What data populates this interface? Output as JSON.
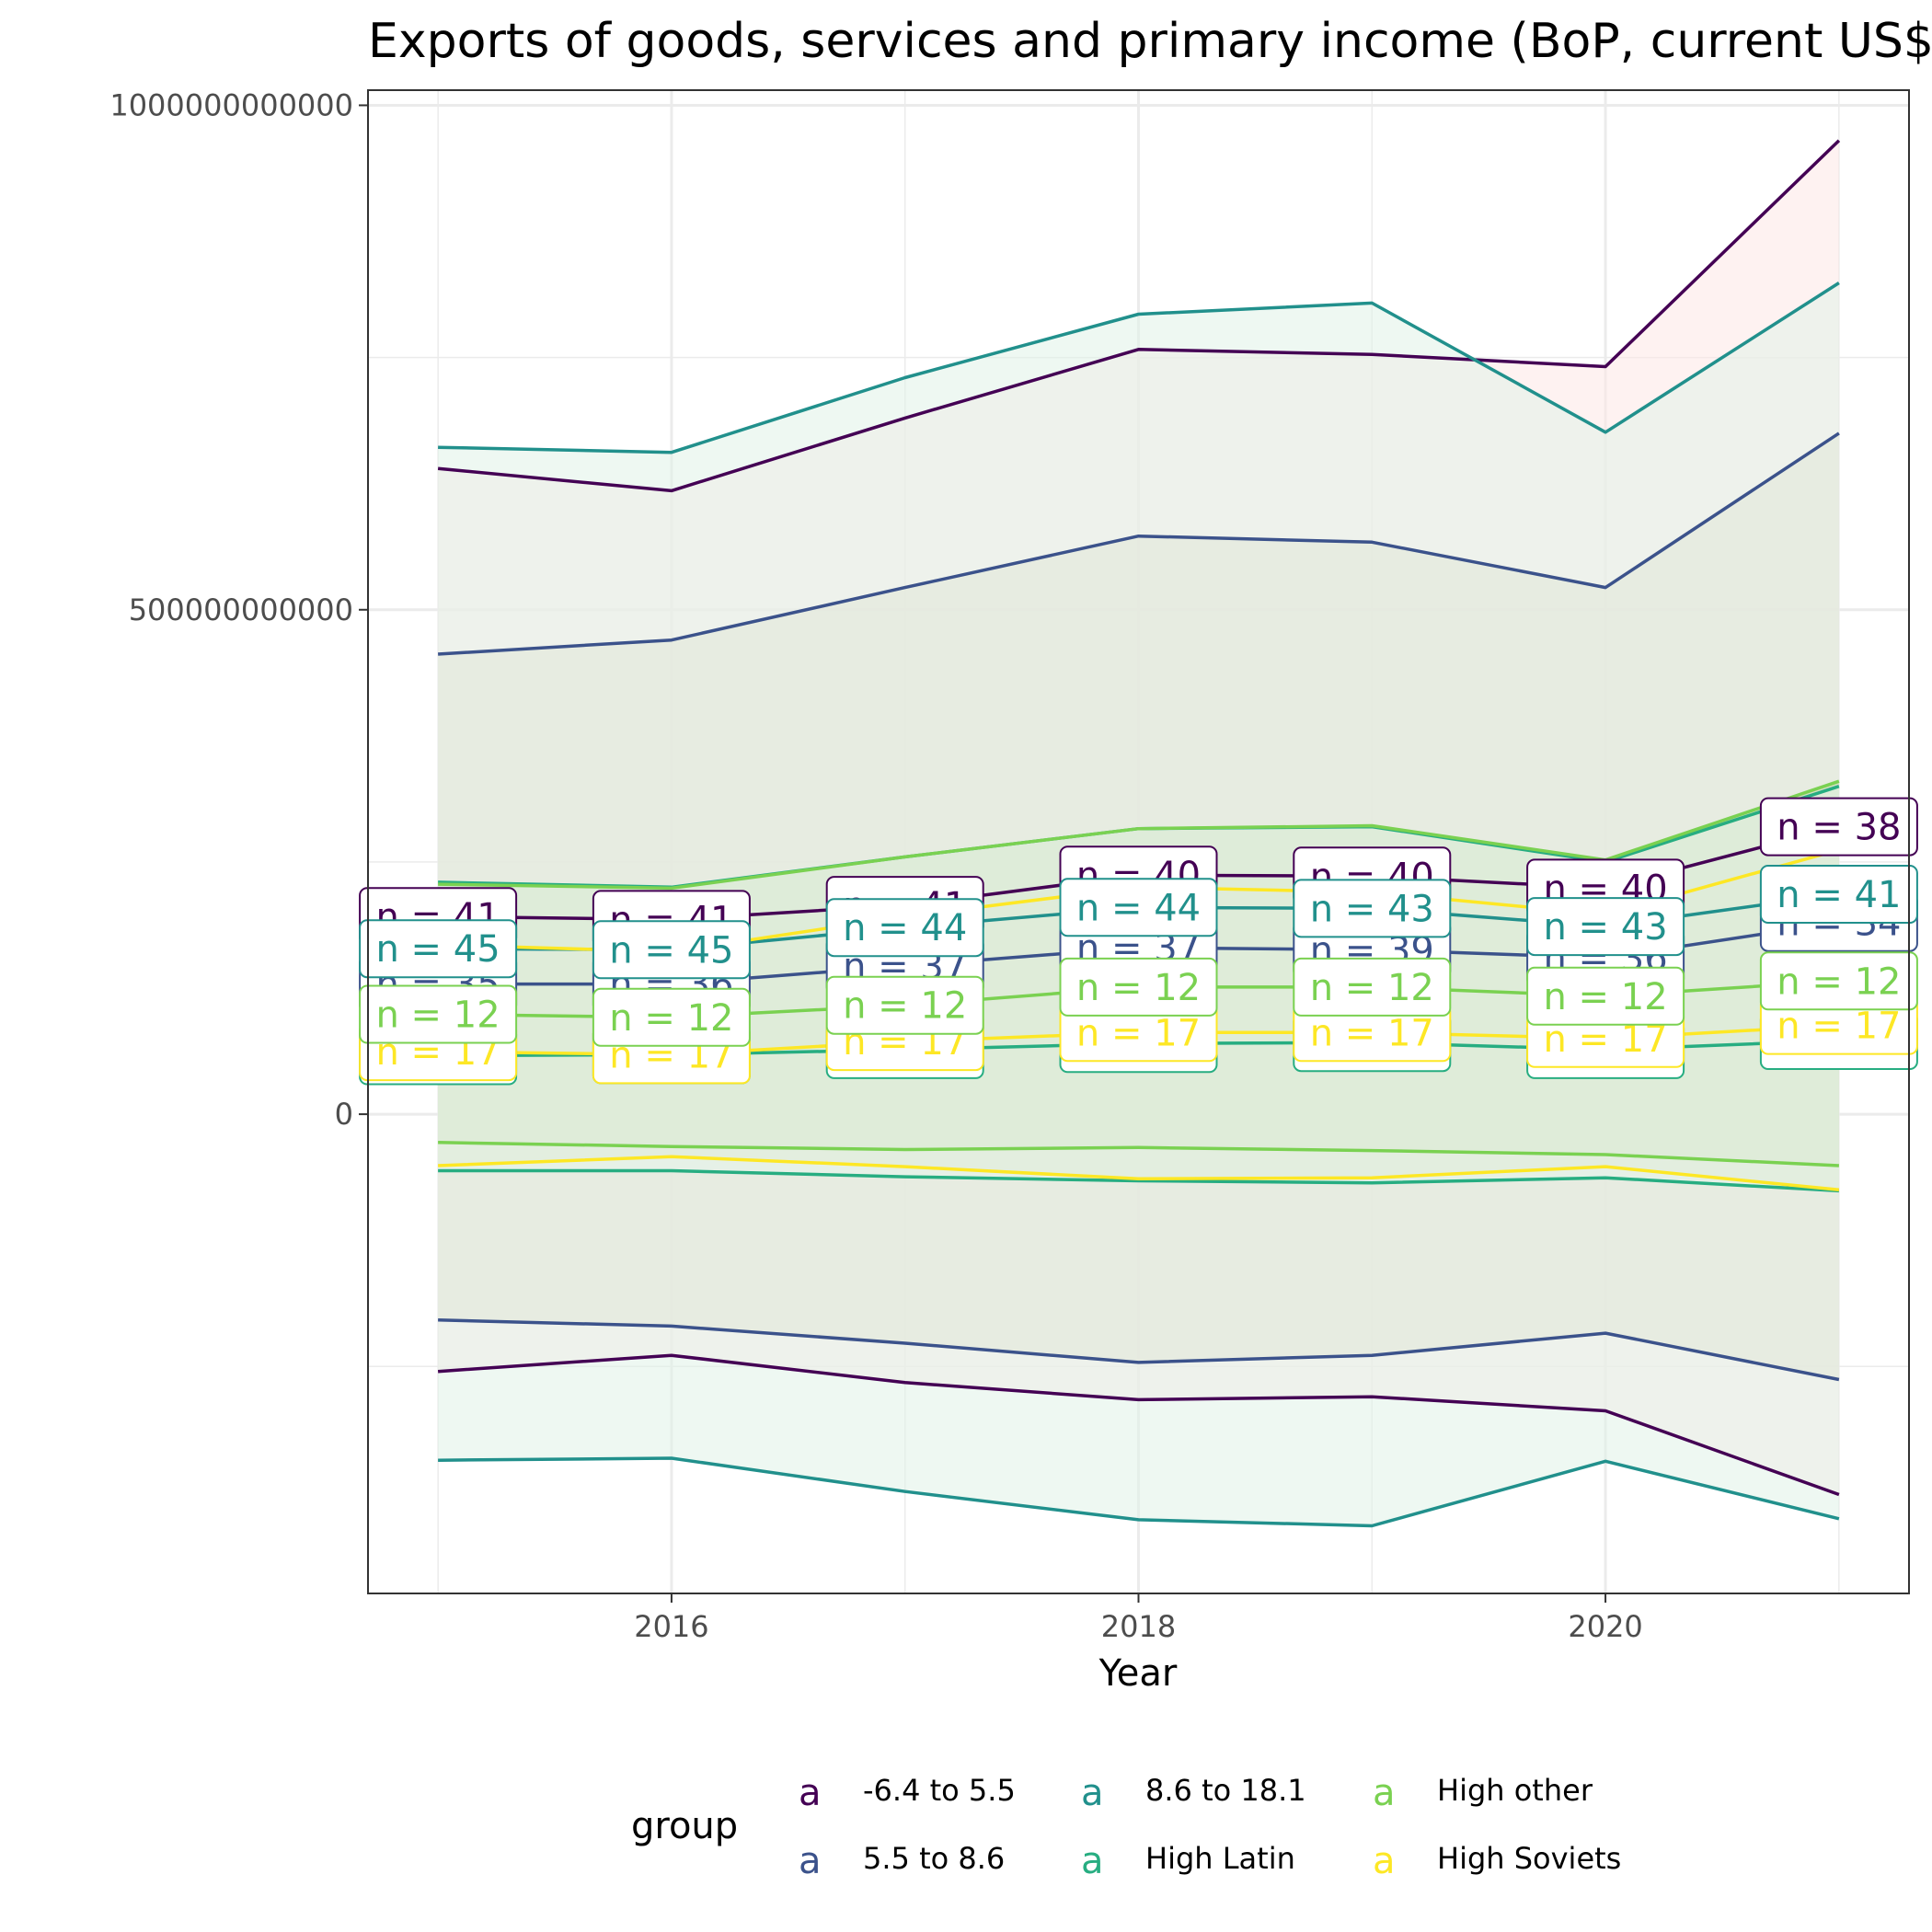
{
  "chart_data": {
    "type": "line",
    "title": "Exports of goods, services and primary income (BoP, current US$)",
    "xlabel": "Year",
    "ylabel": "",
    "xlim": [
      2014.7,
      2021.3
    ],
    "ylim": [
      -475000000000,
      1015000000000
    ],
    "x": [
      2015,
      2016,
      2017,
      2018,
      2019,
      2020,
      2021
    ],
    "x_ticks": [
      2016,
      2018,
      2020
    ],
    "x_tick_labels": [
      "2016",
      "2018",
      "2020"
    ],
    "y_ticks": [
      0,
      500000000000,
      1000000000000
    ],
    "y_tick_labels": [
      "0",
      "500000000000",
      "1000000000000"
    ],
    "grid": true,
    "legend": {
      "title": "group",
      "position": "bottom",
      "key_glyph": "a"
    },
    "series": [
      {
        "name": "-6.4 to 5.5",
        "color": "#440154",
        "fill": "#fde7e6",
        "mean": [
          196000000000,
          193000000000,
          207000000000,
          237000000000,
          236000000000,
          224000000000,
          285000000000
        ],
        "upper": [
          640000000000,
          618000000000,
          690000000000,
          758000000000,
          753000000000,
          741000000000,
          965000000000
        ],
        "lower": [
          -255000000000,
          -239000000000,
          -266000000000,
          -283000000000,
          -280000000000,
          -294000000000,
          -377000000000
        ],
        "n": [
          41,
          41,
          41,
          40,
          40,
          40,
          38
        ]
      },
      {
        "name": "5.5 to 8.6",
        "color": "#3b528b",
        "fill": "#e2e8d8",
        "mean": [
          129000000000,
          129000000000,
          147000000000,
          165000000000,
          163000000000,
          155000000000,
          190000000000
        ],
        "upper": [
          456000000000,
          470000000000,
          522000000000,
          573000000000,
          567000000000,
          522000000000,
          675000000000
        ],
        "lower": [
          -204000000000,
          -210000000000,
          -227000000000,
          -246000000000,
          -239000000000,
          -217000000000,
          -263000000000
        ],
        "n": [
          35,
          36,
          37,
          37,
          39,
          36,
          34
        ]
      },
      {
        "name": "8.6 to 18.1",
        "color": "#21908c",
        "fill": "#e0f3e8",
        "mean": [
          164000000000,
          163000000000,
          185000000000,
          205000000000,
          204000000000,
          186000000000,
          218000000000
        ],
        "upper": [
          661000000000,
          656000000000,
          730000000000,
          793000000000,
          804000000000,
          676000000000,
          824000000000
        ],
        "lower": [
          -343000000000,
          -341000000000,
          -374000000000,
          -402000000000,
          -408000000000,
          -344000000000,
          -401000000000
        ],
        "n": [
          45,
          45,
          44,
          44,
          43,
          43,
          41
        ]
      },
      {
        "name": "High Latin",
        "color": "#27ad81",
        "fill": "#e6f6ec",
        "mean": [
          58000000000,
          59000000000,
          64000000000,
          70000000000,
          71000000000,
          64000000000,
          73000000000
        ],
        "upper": [
          230000000000,
          225000000000,
          255000000000,
          283000000000,
          285000000000,
          250000000000,
          325000000000
        ],
        "lower": [
          -56000000000,
          -56000000000,
          -62000000000,
          -66000000000,
          -68000000000,
          -63000000000,
          -76000000000
        ],
        "n": [
          15,
          15,
          15,
          15,
          15,
          15,
          15
        ]
      },
      {
        "name": "High other",
        "color": "#7ad151",
        "fill": "#c6d6a8",
        "mean": [
          99000000000,
          96000000000,
          108000000000,
          126000000000,
          126000000000,
          117000000000,
          132000000000
        ],
        "upper": [
          228000000000,
          224000000000,
          255000000000,
          283000000000,
          286000000000,
          252000000000,
          330000000000
        ],
        "lower": [
          -28000000000,
          -32000000000,
          -35000000000,
          -33000000000,
          -36000000000,
          -40000000000,
          -51000000000
        ],
        "n": [
          12,
          12,
          12,
          12,
          12,
          12,
          12
        ]
      },
      {
        "name": "High Soviets",
        "color": "#fde725",
        "fill": "#d8dfc0",
        "mean": [
          62000000000,
          59000000000,
          72000000000,
          81000000000,
          81000000000,
          75000000000,
          88000000000
        ],
        "upper": [
          168000000000,
          161000000000,
          196000000000,
          225000000000,
          220000000000,
          198000000000,
          262000000000
        ],
        "lower": [
          -51000000000,
          -42000000000,
          -52000000000,
          -64000000000,
          -63000000000,
          -52000000000,
          -75000000000
        ],
        "n": [
          17,
          17,
          17,
          17,
          17,
          17,
          17
        ]
      }
    ]
  }
}
